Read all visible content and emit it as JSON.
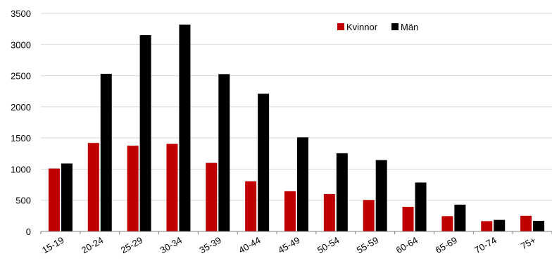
{
  "chart_data": {
    "type": "bar",
    "title": "",
    "xlabel": "",
    "ylabel": "",
    "categories": [
      "15-19",
      "20-24",
      "25-29",
      "30-34",
      "35-39",
      "40-44",
      "45-49",
      "50-54",
      "55-59",
      "60-64",
      "65-69",
      "70-74",
      "75+"
    ],
    "series": [
      {
        "name": "Kvinnor",
        "color": "#c00000",
        "values": [
          1010,
          1420,
          1375,
          1405,
          1100,
          805,
          645,
          600,
          505,
          395,
          245,
          165,
          250
        ]
      },
      {
        "name": "Män",
        "color": "#000000",
        "values": [
          1090,
          2530,
          3150,
          3320,
          2525,
          2210,
          1510,
          1255,
          1145,
          785,
          430,
          185,
          170
        ]
      }
    ],
    "ylim": [
      0,
      3500
    ],
    "yticks": [
      0,
      500,
      1000,
      1500,
      2000,
      2500,
      3000,
      3500
    ],
    "grid": true,
    "legend_position": "top-right"
  }
}
